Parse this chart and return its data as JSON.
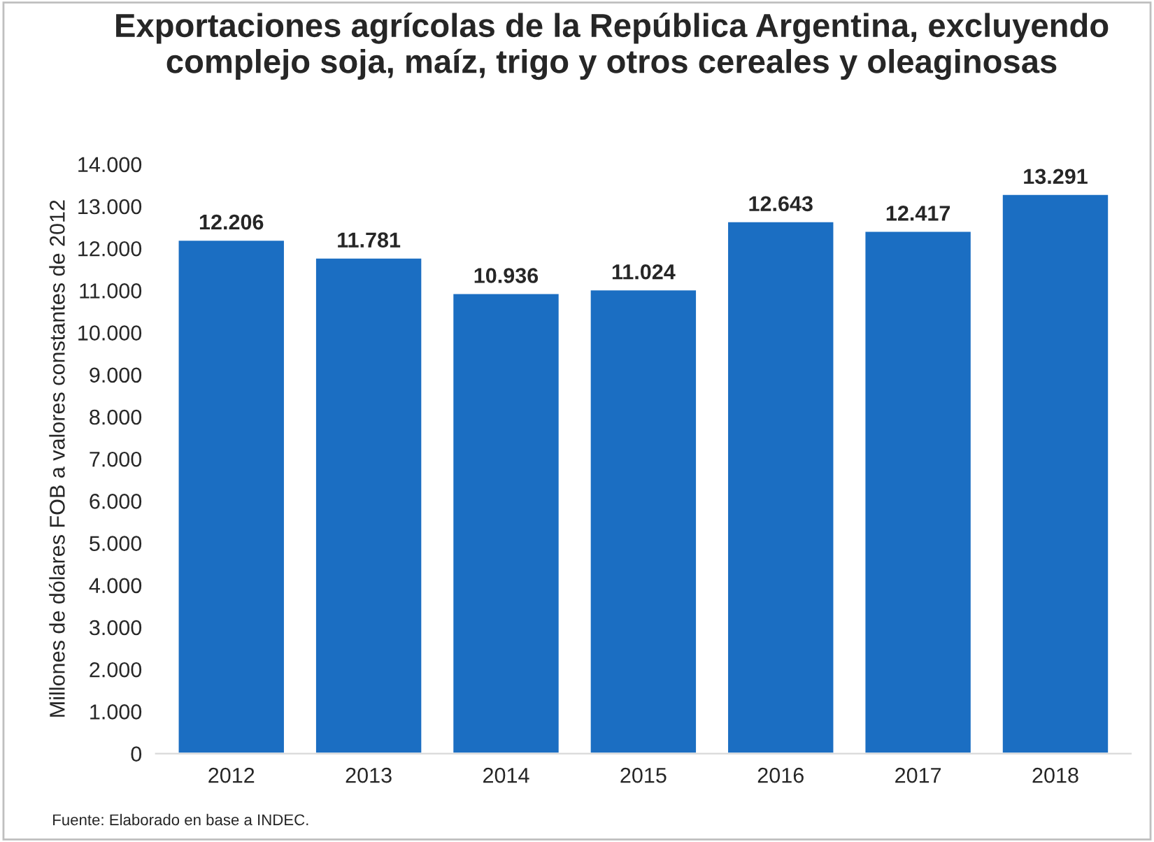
{
  "chart_data": {
    "type": "bar",
    "title": "Exportaciones agrícolas de la República Argentina, excluyendo complejo soja, maíz, trigo y otros cereales y oleaginosas",
    "ylabel": "Millones de dólares FOB a valores constantes de 2012",
    "categories": [
      "2012",
      "2013",
      "2014",
      "2015",
      "2016",
      "2017",
      "2018"
    ],
    "values": [
      12206,
      11781,
      10936,
      11024,
      12643,
      12417,
      13291
    ],
    "value_labels": [
      "12.206",
      "11.781",
      "10.936",
      "11.024",
      "12.643",
      "12.417",
      "13.291"
    ],
    "color": "#1b6ec2",
    "ylim": [
      0,
      14000
    ],
    "yticks": [
      {
        "value": 0,
        "label": "0"
      },
      {
        "value": 1000,
        "label": "1.000"
      },
      {
        "value": 2000,
        "label": "2.000"
      },
      {
        "value": 3000,
        "label": "3.000"
      },
      {
        "value": 4000,
        "label": "4.000"
      },
      {
        "value": 5000,
        "label": "5.000"
      },
      {
        "value": 6000,
        "label": "6.000"
      },
      {
        "value": 7000,
        "label": "7.000"
      },
      {
        "value": 8000,
        "label": "8.000"
      },
      {
        "value": 9000,
        "label": "9.000"
      },
      {
        "value": 10000,
        "label": "10.000"
      },
      {
        "value": 11000,
        "label": "11.000"
      },
      {
        "value": 12000,
        "label": "12.000"
      },
      {
        "value": 13000,
        "label": "13.000"
      },
      {
        "value": 14000,
        "label": "14.000"
      }
    ],
    "grid": false,
    "annotations": [
      "Fuente: Elaborado en base a INDEC."
    ]
  }
}
